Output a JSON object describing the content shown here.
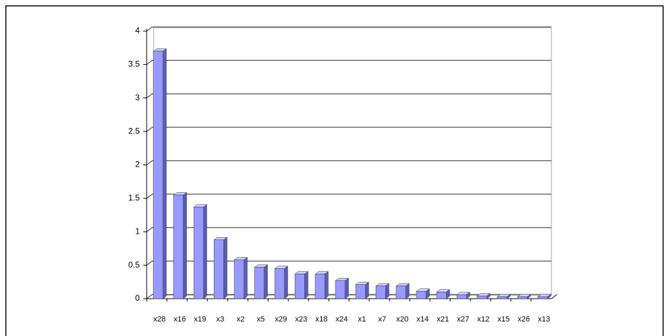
{
  "chart_data": {
    "type": "bar3d",
    "categories": [
      "x28",
      "x16",
      "x19",
      "x3",
      "x2",
      "x5",
      "x29",
      "x23",
      "x18",
      "x24",
      "x1",
      "x7",
      "x20",
      "x14",
      "x21",
      "x27",
      "x12",
      "x15",
      "x26",
      "x13"
    ],
    "values": [
      3.7,
      1.55,
      1.37,
      0.88,
      0.58,
      0.47,
      0.45,
      0.37,
      0.37,
      0.27,
      0.21,
      0.19,
      0.19,
      0.11,
      0.1,
      0.06,
      0.04,
      0.03,
      0.03,
      0.03
    ],
    "color": "#9999ff",
    "ylim": [
      0,
      4
    ],
    "yticks": [
      0,
      0.5,
      1,
      1.5,
      2,
      2.5,
      3,
      3.5,
      4
    ],
    "grid": true
  }
}
